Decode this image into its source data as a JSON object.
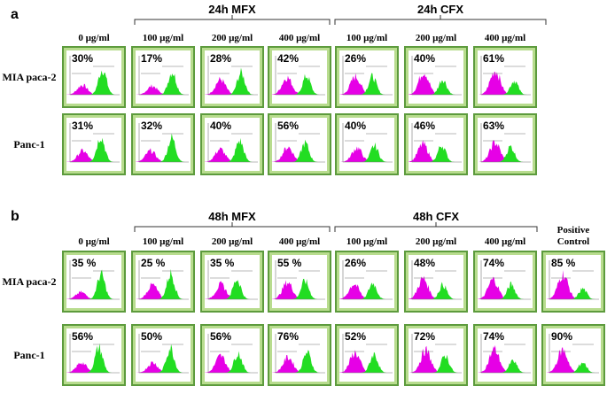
{
  "panel_a": {
    "label": "a",
    "groups": [
      "24h MFX",
      "24h CFX"
    ],
    "columns": [
      "0 µg/ml",
      "100 µg/ml",
      "200 µg/ml",
      "400 µg/ml",
      "100 µg/ml",
      "200 µg/ml",
      "400 µg/ml"
    ],
    "rows": [
      {
        "label": "MIA paca-2",
        "values": [
          "30%",
          "17%",
          "28%",
          "42%",
          "26%",
          "40%",
          "61%"
        ]
      },
      {
        "label": "Panc-1",
        "values": [
          "31%",
          "32%",
          "40%",
          "56%",
          "40%",
          "46%",
          "63%"
        ]
      }
    ]
  },
  "panel_b": {
    "label": "b",
    "groups": [
      "48h MFX",
      "48h CFX"
    ],
    "columns": [
      "0 µg/ml",
      "100 µg/ml",
      "200 µg/ml",
      "400 µg/ml",
      "100 µg/ml",
      "200 µg/ml",
      "400 µg/ml",
      "Positive Control"
    ],
    "rows": [
      {
        "label": "MIA paca-2",
        "values": [
          "35 %",
          "25 %",
          "35 %",
          "55 %",
          "26%",
          "48%",
          "74%",
          "85 %"
        ]
      },
      {
        "label": "Panc-1",
        "values": [
          "56%",
          "50%",
          "56%",
          "76%",
          "52%",
          "72%",
          "74%",
          "90%"
        ]
      }
    ]
  }
}
